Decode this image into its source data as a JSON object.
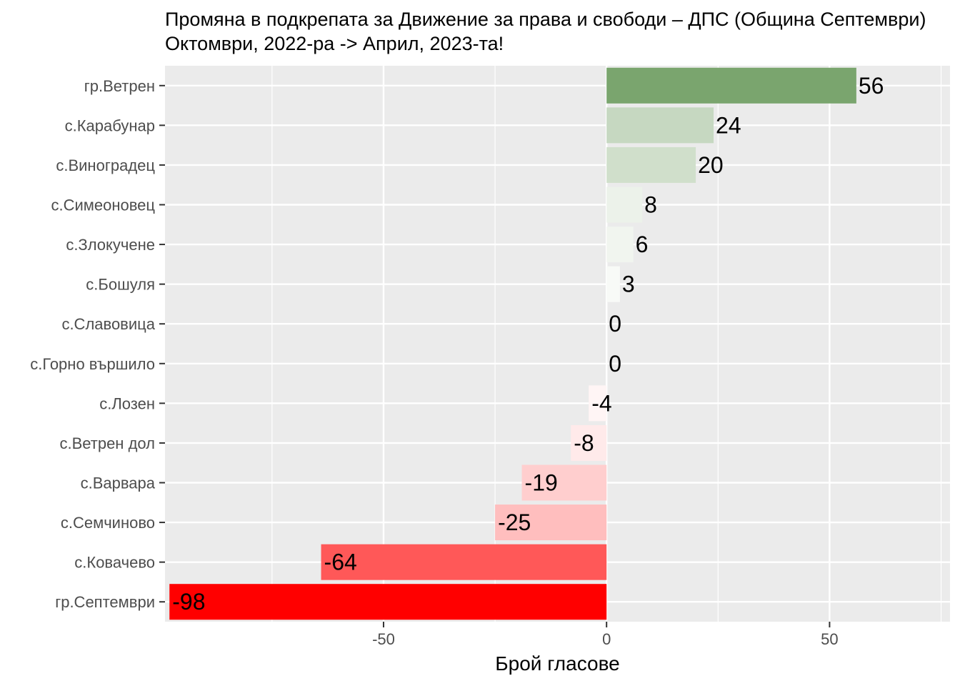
{
  "chart_data": {
    "type": "bar",
    "orientation": "horizontal",
    "title": [
      "Промяна в подкрепата за Движение за права и свободи – ДПС (Община Септември)",
      "Октомври, 2022-ра -> Април, 2023-та!"
    ],
    "xlabel": "Брой гласове",
    "ylabel": "",
    "xlim": [
      -99,
      77
    ],
    "xticks": [
      -50,
      0,
      50
    ],
    "grid": true,
    "legend": "none",
    "categories": [
      "гр.Ветрен",
      "с.Карабунар",
      "с.Виноградец",
      "с.Симеоновец",
      "с.Злокучене",
      "с.Бошуля",
      "с.Славовица",
      "с.Горно вършило",
      "с.Лозен",
      "с.Ветрен дол",
      "с.Варвара",
      "с.Семчиново",
      "с.Ковачево",
      "гр.Септември"
    ],
    "values": [
      56,
      24,
      20,
      8,
      6,
      3,
      0,
      0,
      -4,
      -8,
      -19,
      -25,
      -64,
      -98
    ],
    "colors": {
      "positive_max": "#7aa56e",
      "negative_max": "#ff0000",
      "neutral": "#ffffff",
      "panel_background": "#ebebeb",
      "grid": "#ffffff"
    }
  }
}
